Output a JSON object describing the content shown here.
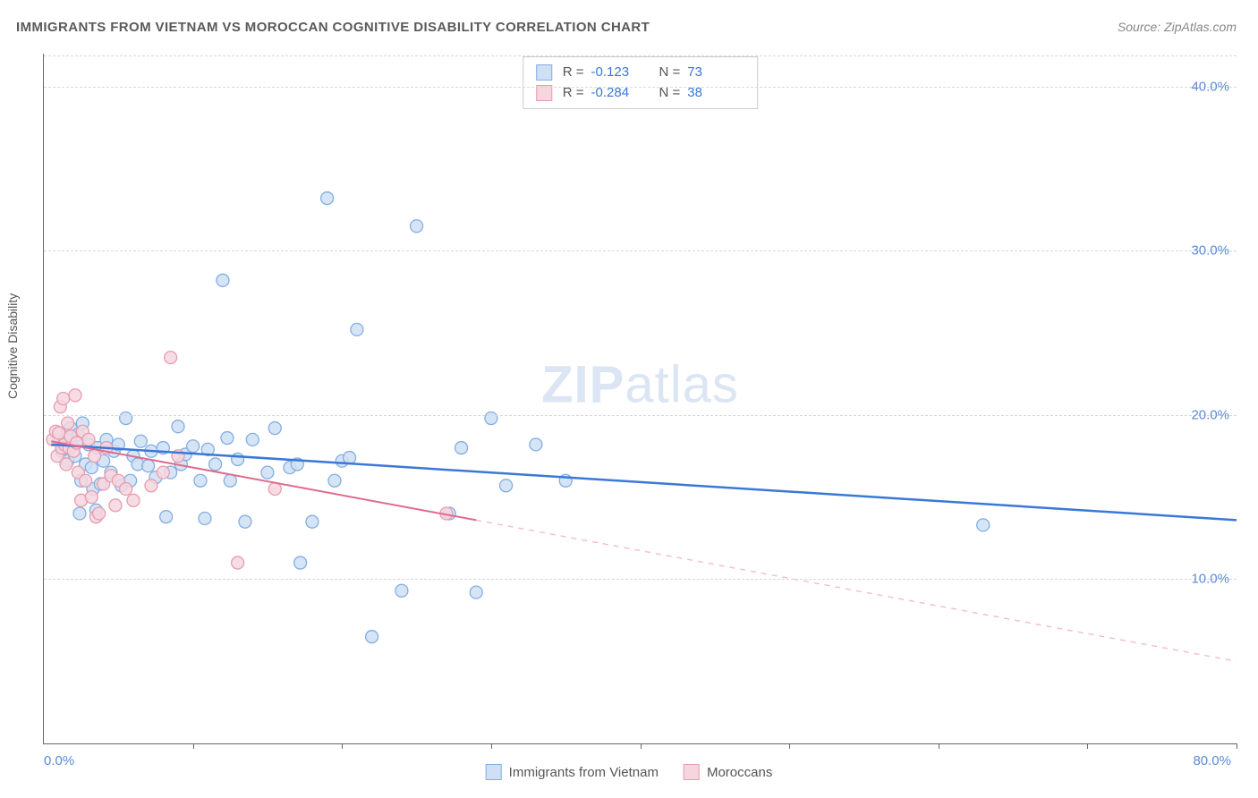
{
  "title": "IMMIGRANTS FROM VIETNAM VS MOROCCAN COGNITIVE DISABILITY CORRELATION CHART",
  "source": "Source: ZipAtlas.com",
  "ylabel": "Cognitive Disability",
  "watermark_a": "ZIP",
  "watermark_b": "atlas",
  "chart": {
    "type": "scatter",
    "xlim": [
      0,
      80
    ],
    "ylim": [
      0,
      42
    ],
    "xticks": [
      0,
      10,
      20,
      30,
      40,
      50,
      60,
      70,
      80
    ],
    "yticks": [
      10,
      20,
      30,
      40
    ],
    "ytick_labels": [
      "10.0%",
      "20.0%",
      "30.0%",
      "40.0%"
    ],
    "x_origin_label": "0.0%",
    "x_max_label": "80.0%",
    "background_color": "#ffffff",
    "grid_color": "#d8d8d8",
    "series": [
      {
        "name": "Immigrants from Vietnam",
        "key": "vietnam",
        "marker_fill": "#cfe0f5",
        "marker_stroke": "#82aee2",
        "marker_radius": 7,
        "line_color": "#3a78d8",
        "line_width": 2.5,
        "dash_color": "#3a78d8",
        "R": "-0.123",
        "N": "73",
        "trend": {
          "x1": 0.5,
          "y1": 18.2,
          "x2": 80,
          "y2": 13.6,
          "solid_until_x": 80
        },
        "points": [
          [
            1.0,
            18.5
          ],
          [
            1.2,
            17.8
          ],
          [
            1.3,
            18.0
          ],
          [
            1.5,
            19.0
          ],
          [
            1.6,
            17.2
          ],
          [
            1.7,
            18.6
          ],
          [
            1.8,
            19.2
          ],
          [
            2.0,
            18.0
          ],
          [
            2.1,
            17.5
          ],
          [
            2.3,
            18.8
          ],
          [
            2.4,
            14.0
          ],
          [
            2.5,
            16.0
          ],
          [
            2.6,
            19.5
          ],
          [
            2.8,
            17.0
          ],
          [
            3.0,
            18.2
          ],
          [
            3.2,
            16.8
          ],
          [
            3.3,
            15.5
          ],
          [
            3.5,
            14.2
          ],
          [
            3.6,
            18.0
          ],
          [
            3.8,
            15.8
          ],
          [
            4.0,
            17.2
          ],
          [
            4.2,
            18.5
          ],
          [
            4.5,
            16.5
          ],
          [
            4.7,
            17.8
          ],
          [
            5.0,
            18.2
          ],
          [
            5.2,
            15.7
          ],
          [
            5.5,
            19.8
          ],
          [
            5.8,
            16.0
          ],
          [
            6.0,
            17.5
          ],
          [
            6.3,
            17.0
          ],
          [
            6.5,
            18.4
          ],
          [
            7.0,
            16.9
          ],
          [
            7.2,
            17.8
          ],
          [
            7.5,
            16.2
          ],
          [
            8.0,
            18.0
          ],
          [
            8.2,
            13.8
          ],
          [
            8.5,
            16.5
          ],
          [
            9.0,
            19.3
          ],
          [
            9.2,
            17.0
          ],
          [
            9.5,
            17.6
          ],
          [
            10.0,
            18.1
          ],
          [
            10.5,
            16.0
          ],
          [
            10.8,
            13.7
          ],
          [
            11.0,
            17.9
          ],
          [
            11.5,
            17.0
          ],
          [
            12.0,
            28.2
          ],
          [
            12.3,
            18.6
          ],
          [
            12.5,
            16.0
          ],
          [
            13.0,
            17.3
          ],
          [
            13.5,
            13.5
          ],
          [
            14.0,
            18.5
          ],
          [
            15.0,
            16.5
          ],
          [
            15.5,
            19.2
          ],
          [
            16.5,
            16.8
          ],
          [
            17.0,
            17.0
          ],
          [
            17.2,
            11.0
          ],
          [
            18.0,
            13.5
          ],
          [
            19.0,
            33.2
          ],
          [
            19.5,
            16.0
          ],
          [
            20.0,
            17.2
          ],
          [
            20.5,
            17.4
          ],
          [
            21.0,
            25.2
          ],
          [
            22.0,
            6.5
          ],
          [
            24.0,
            9.3
          ],
          [
            25.0,
            31.5
          ],
          [
            27.2,
            14.0
          ],
          [
            28.0,
            18.0
          ],
          [
            29.0,
            9.2
          ],
          [
            30.0,
            19.8
          ],
          [
            31.0,
            15.7
          ],
          [
            33.0,
            18.2
          ],
          [
            35.0,
            16.0
          ],
          [
            63.0,
            13.3
          ]
        ]
      },
      {
        "name": "Moroccans",
        "key": "moroccans",
        "marker_fill": "#f6d6de",
        "marker_stroke": "#e79cb2",
        "marker_radius": 7,
        "line_color": "#e06a8e",
        "line_width": 2,
        "dash_color": "#f3bccb",
        "R": "-0.284",
        "N": "38",
        "trend": {
          "x1": 0.5,
          "y1": 18.4,
          "x2": 80,
          "y2": 5.0,
          "solid_until_x": 29
        },
        "points": [
          [
            0.6,
            18.5
          ],
          [
            0.8,
            19.0
          ],
          [
            0.9,
            17.5
          ],
          [
            1.0,
            18.9
          ],
          [
            1.1,
            20.5
          ],
          [
            1.2,
            18.0
          ],
          [
            1.3,
            21.0
          ],
          [
            1.4,
            18.2
          ],
          [
            1.5,
            17.0
          ],
          [
            1.6,
            19.5
          ],
          [
            1.7,
            18.0
          ],
          [
            1.8,
            18.7
          ],
          [
            2.0,
            17.8
          ],
          [
            2.1,
            21.2
          ],
          [
            2.2,
            18.3
          ],
          [
            2.3,
            16.5
          ],
          [
            2.5,
            14.8
          ],
          [
            2.6,
            19.0
          ],
          [
            2.8,
            16.0
          ],
          [
            3.0,
            18.5
          ],
          [
            3.2,
            15.0
          ],
          [
            3.4,
            17.5
          ],
          [
            3.5,
            13.8
          ],
          [
            3.7,
            14.0
          ],
          [
            4.0,
            15.8
          ],
          [
            4.2,
            18.0
          ],
          [
            4.5,
            16.3
          ],
          [
            4.8,
            14.5
          ],
          [
            5.0,
            16.0
          ],
          [
            5.5,
            15.5
          ],
          [
            6.0,
            14.8
          ],
          [
            7.2,
            15.7
          ],
          [
            8.0,
            16.5
          ],
          [
            8.5,
            23.5
          ],
          [
            9.0,
            17.5
          ],
          [
            13.0,
            11.0
          ],
          [
            15.5,
            15.5
          ],
          [
            27.0,
            14.0
          ]
        ]
      }
    ]
  },
  "bottom_legend": {
    "a": "Immigrants from Vietnam",
    "b": "Moroccans"
  }
}
